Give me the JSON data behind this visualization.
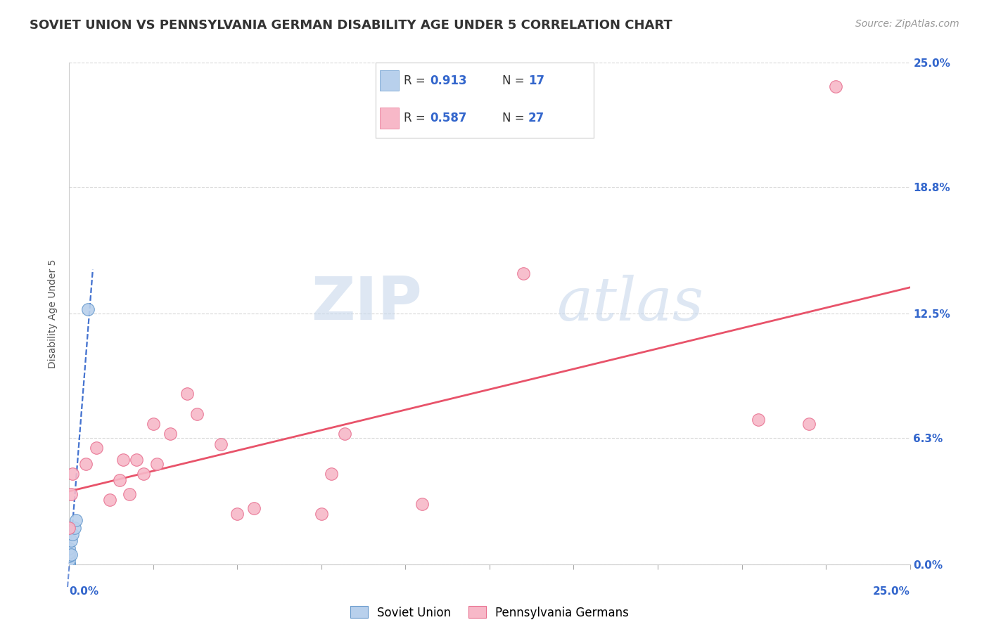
{
  "title": "SOVIET UNION VS PENNSYLVANIA GERMAN DISABILITY AGE UNDER 5 CORRELATION CHART",
  "source": "Source: ZipAtlas.com",
  "ylabel": "Disability Age Under 5",
  "ytick_values": [
    0.0,
    6.3,
    12.5,
    18.8,
    25.0
  ],
  "xlim": [
    0.0,
    25.0
  ],
  "ylim": [
    0.0,
    25.0
  ],
  "background_color": "#ffffff",
  "grid_color": "#d8d8d8",
  "soviet_R": "0.913",
  "soviet_N": "17",
  "penn_R": "0.587",
  "penn_N": "27",
  "soviet_scatter_color": "#b8d0ec",
  "soviet_scatter_edge": "#6699cc",
  "penn_scatter_color": "#f7b8c8",
  "penn_scatter_edge": "#e87090",
  "soviet_line_color": "#3366cc",
  "penn_line_color": "#e8536a",
  "soviet_x": [
    0.0,
    0.0,
    0.0,
    0.0,
    0.0,
    0.0,
    0.0,
    0.0,
    0.0,
    0.0,
    0.0,
    0.05,
    0.05,
    0.1,
    0.15,
    0.2,
    0.55
  ],
  "soviet_y": [
    0.0,
    0.0,
    0.0,
    0.0,
    0.0,
    0.0,
    0.0,
    0.2,
    0.4,
    0.6,
    0.8,
    0.5,
    1.2,
    1.5,
    1.8,
    2.2,
    12.7
  ],
  "penn_x": [
    0.0,
    0.05,
    0.1,
    0.5,
    0.8,
    1.2,
    1.5,
    1.6,
    1.8,
    2.0,
    2.2,
    2.5,
    2.6,
    3.0,
    3.5,
    3.8,
    4.5,
    5.0,
    5.5,
    7.5,
    7.8,
    8.2,
    10.5,
    13.5,
    20.5,
    22.0,
    22.8
  ],
  "penn_y": [
    1.8,
    3.5,
    4.5,
    5.0,
    5.8,
    3.2,
    4.2,
    5.2,
    3.5,
    5.2,
    4.5,
    7.0,
    5.0,
    6.5,
    8.5,
    7.5,
    6.0,
    2.5,
    2.8,
    2.5,
    4.5,
    6.5,
    3.0,
    14.5,
    7.2,
    7.0,
    23.8
  ],
  "watermark_zip": "ZIP",
  "watermark_atlas": "atlas",
  "watermark_color": "#c8d8ec",
  "legend_soviet_label": "Soviet Union",
  "legend_penn_label": "Pennsylvania Germans",
  "title_fontsize": 13,
  "axis_label_fontsize": 10,
  "tick_fontsize": 11,
  "legend_fontsize": 13,
  "source_fontsize": 10
}
